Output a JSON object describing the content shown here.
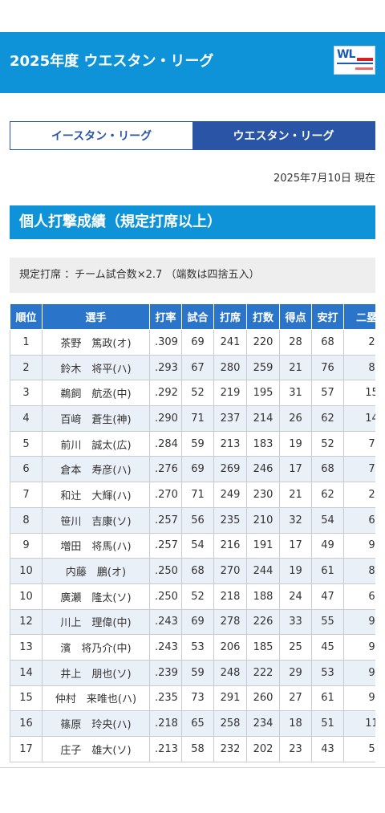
{
  "header": {
    "title": "2025年度 ウエスタン・リーグ",
    "logo_text": "WL"
  },
  "tabs": [
    {
      "label": "イースタン・リーグ",
      "active": false
    },
    {
      "label": "ウエスタン・リーグ",
      "active": true
    }
  ],
  "as_of": "2025年7月10日 現在",
  "section_title": "個人打撃成績（規定打席以上）",
  "note": "規定打席 ：チーム試合数×2.7 （端数は四捨五入）",
  "table": {
    "headers": [
      "順位",
      "選手",
      "打率",
      "試合",
      "打席",
      "打数",
      "得点",
      "安打",
      "二塁打"
    ],
    "rows": [
      [
        "1",
        "茶野　篤政(オ)",
        ".309",
        "69",
        "241",
        "220",
        "28",
        "68",
        "2"
      ],
      [
        "2",
        "鈴木　将平(ハ)",
        ".293",
        "67",
        "280",
        "259",
        "21",
        "76",
        "8"
      ],
      [
        "3",
        "鵜飼　航丞(中)",
        ".292",
        "52",
        "219",
        "195",
        "31",
        "57",
        "15"
      ],
      [
        "4",
        "百﨑　蒼生(神)",
        ".290",
        "71",
        "237",
        "214",
        "26",
        "62",
        "14"
      ],
      [
        "5",
        "前川　誠太(広)",
        ".284",
        "59",
        "213",
        "183",
        "19",
        "52",
        "7"
      ],
      [
        "6",
        "倉本　寿彦(ハ)",
        ".276",
        "69",
        "269",
        "246",
        "17",
        "68",
        "7"
      ],
      [
        "7",
        "和辻　大輝(ハ)",
        ".270",
        "71",
        "249",
        "230",
        "21",
        "62",
        "2"
      ],
      [
        "8",
        "笹川　吉康(ソ)",
        ".257",
        "56",
        "235",
        "210",
        "32",
        "54",
        "6"
      ],
      [
        "9",
        "増田　将馬(ハ)",
        ".257",
        "54",
        "216",
        "191",
        "17",
        "49",
        "9"
      ],
      [
        "10",
        "内藤　鵬(オ)",
        ".250",
        "68",
        "270",
        "244",
        "19",
        "61",
        "8"
      ],
      [
        "10",
        "廣瀬　隆太(ソ)",
        ".250",
        "52",
        "218",
        "188",
        "24",
        "47",
        "6"
      ],
      [
        "12",
        "川上　理偉(中)",
        ".243",
        "69",
        "278",
        "226",
        "33",
        "55",
        "9"
      ],
      [
        "13",
        "濱　将乃介(中)",
        ".243",
        "53",
        "206",
        "185",
        "25",
        "45",
        "9"
      ],
      [
        "14",
        "井上　朋也(ソ)",
        ".239",
        "59",
        "248",
        "222",
        "29",
        "53",
        "9"
      ],
      [
        "15",
        "仲村　来唯也(ハ)",
        ".235",
        "73",
        "291",
        "260",
        "27",
        "61",
        "9"
      ],
      [
        "16",
        "篠原　玲央(ハ)",
        ".218",
        "65",
        "258",
        "234",
        "18",
        "51",
        "11"
      ],
      [
        "17",
        "庄子　雄大(ソ)",
        ".213",
        "58",
        "232",
        "202",
        "23",
        "43",
        "5"
      ]
    ]
  },
  "colors": {
    "header_bg": "#0e93d8",
    "tab_active": "#2a55a6",
    "table_header": "#2a74c9",
    "row_alt": "#eaf0f8"
  }
}
